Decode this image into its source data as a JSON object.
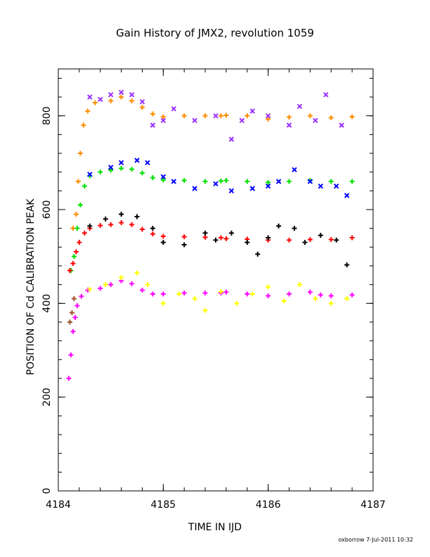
{
  "chart_data": {
    "type": "scatter",
    "title": "Gain History of JMX2, revolution 1059",
    "xlabel": "TIME IN IJD",
    "ylabel": "POSITION OF Cd CALIBRATION PEAK",
    "xlim": [
      4184,
      4187
    ],
    "ylim": [
      0,
      900
    ],
    "xticks": [
      4184,
      4185,
      4186,
      4187
    ],
    "yticks": [
      0,
      200,
      400,
      600,
      800
    ],
    "grid": false,
    "legend": "none",
    "gap_x": [
      4185.55,
      4185.58
    ],
    "series": [
      {
        "color": "#ff8c00",
        "marker": "plus",
        "values": [
          [
            4184.14,
            560
          ],
          [
            4184.17,
            590
          ],
          [
            4184.19,
            660
          ],
          [
            4184.21,
            720
          ],
          [
            4184.24,
            780
          ],
          [
            4184.28,
            810
          ],
          [
            4184.35,
            828
          ],
          [
            4184.5,
            832
          ],
          [
            4184.6,
            840
          ],
          [
            4184.7,
            832
          ],
          [
            4184.8,
            818
          ],
          [
            4184.9,
            804
          ],
          [
            4185.0,
            798
          ],
          [
            4185.2,
            800
          ],
          [
            4185.4,
            800
          ],
          [
            4185.55,
            800
          ],
          [
            4185.6,
            801
          ],
          [
            4185.8,
            800
          ],
          [
            4186.0,
            793
          ],
          [
            4186.2,
            797
          ],
          [
            4186.4,
            800
          ],
          [
            4186.6,
            796
          ],
          [
            4186.8,
            798
          ]
        ]
      },
      {
        "color": "#9b30ff",
        "marker": "x",
        "values": [
          [
            4184.3,
            840
          ],
          [
            4184.4,
            835
          ],
          [
            4184.5,
            845
          ],
          [
            4184.6,
            850
          ],
          [
            4184.7,
            845
          ],
          [
            4184.8,
            830
          ],
          [
            4184.9,
            780
          ],
          [
            4185.0,
            790
          ],
          [
            4185.1,
            815
          ],
          [
            4185.3,
            790
          ],
          [
            4185.5,
            800
          ],
          [
            4185.65,
            750
          ],
          [
            4185.75,
            790
          ],
          [
            4185.85,
            810
          ],
          [
            4186.0,
            800
          ],
          [
            4186.2,
            780
          ],
          [
            4186.3,
            820
          ],
          [
            4186.45,
            790
          ],
          [
            4186.55,
            845
          ],
          [
            4186.7,
            780
          ]
        ]
      },
      {
        "color": "#00e000",
        "marker": "plus",
        "values": [
          [
            4184.12,
            470
          ],
          [
            4184.15,
            500
          ],
          [
            4184.18,
            560
          ],
          [
            4184.21,
            610
          ],
          [
            4184.25,
            650
          ],
          [
            4184.3,
            672
          ],
          [
            4184.4,
            680
          ],
          [
            4184.5,
            684
          ],
          [
            4184.6,
            688
          ],
          [
            4184.7,
            686
          ],
          [
            4184.8,
            678
          ],
          [
            4184.9,
            668
          ],
          [
            4185.0,
            663
          ],
          [
            4185.2,
            662
          ],
          [
            4185.4,
            660
          ],
          [
            4185.55,
            661
          ],
          [
            4185.6,
            662
          ],
          [
            4185.8,
            660
          ],
          [
            4186.0,
            658
          ],
          [
            4186.2,
            660
          ],
          [
            4186.4,
            662
          ],
          [
            4186.6,
            660
          ],
          [
            4186.8,
            660
          ]
        ]
      },
      {
        "color": "#0000ff",
        "marker": "x",
        "values": [
          [
            4184.3,
            675
          ],
          [
            4184.5,
            690
          ],
          [
            4184.6,
            700
          ],
          [
            4184.75,
            705
          ],
          [
            4184.85,
            700
          ],
          [
            4185.0,
            670
          ],
          [
            4185.1,
            660
          ],
          [
            4185.3,
            645
          ],
          [
            4185.5,
            655
          ],
          [
            4185.65,
            640
          ],
          [
            4185.85,
            645
          ],
          [
            4186.0,
            650
          ],
          [
            4186.1,
            660
          ],
          [
            4186.25,
            685
          ],
          [
            4186.4,
            660
          ],
          [
            4186.5,
            650
          ],
          [
            4186.65,
            650
          ],
          [
            4186.75,
            630
          ]
        ]
      },
      {
        "color": "#ff0000",
        "marker": "plus",
        "values": [
          [
            4184.11,
            470
          ],
          [
            4184.14,
            485
          ],
          [
            4184.17,
            510
          ],
          [
            4184.2,
            530
          ],
          [
            4184.25,
            550
          ],
          [
            4184.3,
            560
          ],
          [
            4184.4,
            566
          ],
          [
            4184.5,
            568
          ],
          [
            4184.6,
            572
          ],
          [
            4184.7,
            568
          ],
          [
            4184.8,
            558
          ],
          [
            4184.9,
            548
          ],
          [
            4185.0,
            543
          ],
          [
            4185.2,
            542
          ],
          [
            4185.4,
            541
          ],
          [
            4185.55,
            540
          ],
          [
            4185.6,
            538
          ],
          [
            4185.8,
            537
          ],
          [
            4186.0,
            535
          ],
          [
            4186.2,
            535
          ],
          [
            4186.4,
            536
          ],
          [
            4186.6,
            536
          ],
          [
            4186.8,
            540
          ]
        ]
      },
      {
        "color": "#000000",
        "marker": "plus",
        "values": [
          [
            4184.3,
            565
          ],
          [
            4184.45,
            580
          ],
          [
            4184.6,
            590
          ],
          [
            4184.75,
            585
          ],
          [
            4184.9,
            560
          ],
          [
            4185.0,
            530
          ],
          [
            4185.2,
            525
          ],
          [
            4185.4,
            550
          ],
          [
            4185.5,
            535
          ],
          [
            4185.65,
            550
          ],
          [
            4185.8,
            530
          ],
          [
            4185.9,
            505
          ],
          [
            4186.0,
            540
          ],
          [
            4186.1,
            565
          ],
          [
            4186.25,
            560
          ],
          [
            4186.35,
            530
          ],
          [
            4186.5,
            545
          ],
          [
            4186.65,
            535
          ],
          [
            4186.75,
            482
          ]
        ]
      },
      {
        "color": "#ff00ff",
        "marker": "plus",
        "values": [
          [
            4184.1,
            240
          ],
          [
            4184.12,
            290
          ],
          [
            4184.14,
            340
          ],
          [
            4184.16,
            370
          ],
          [
            4184.18,
            395
          ],
          [
            4184.22,
            415
          ],
          [
            4184.28,
            428
          ],
          [
            4184.4,
            432
          ],
          [
            4184.5,
            440
          ],
          [
            4184.6,
            448
          ],
          [
            4184.7,
            442
          ],
          [
            4184.8,
            428
          ],
          [
            4184.9,
            420
          ],
          [
            4185.0,
            420
          ],
          [
            4185.2,
            422
          ],
          [
            4185.4,
            422
          ],
          [
            4185.55,
            422
          ],
          [
            4185.6,
            424
          ],
          [
            4185.8,
            420
          ],
          [
            4186.0,
            416
          ],
          [
            4186.2,
            420
          ],
          [
            4186.4,
            424
          ],
          [
            4186.5,
            418
          ],
          [
            4186.6,
            416
          ],
          [
            4186.8,
            418
          ]
        ]
      },
      {
        "color": "#ffff00",
        "marker": "plus",
        "values": [
          [
            4184.3,
            430
          ],
          [
            4184.45,
            440
          ],
          [
            4184.6,
            455
          ],
          [
            4184.75,
            465
          ],
          [
            4184.85,
            440
          ],
          [
            4185.0,
            400
          ],
          [
            4185.15,
            420
          ],
          [
            4185.3,
            410
          ],
          [
            4185.4,
            385
          ],
          [
            4185.55,
            425
          ],
          [
            4185.7,
            400
          ],
          [
            4185.85,
            420
          ],
          [
            4186.0,
            435
          ],
          [
            4186.15,
            405
          ],
          [
            4186.3,
            440
          ],
          [
            4186.45,
            410
          ],
          [
            4186.6,
            400
          ],
          [
            4186.75,
            410
          ]
        ]
      },
      {
        "color": "#a0522d",
        "marker": "plus",
        "values": [
          [
            4184.11,
            360
          ],
          [
            4184.13,
            380
          ],
          [
            4184.15,
            410
          ]
        ]
      }
    ]
  },
  "footer": {
    "signature": "oxborrow  7-Jul-2011 10:32"
  }
}
